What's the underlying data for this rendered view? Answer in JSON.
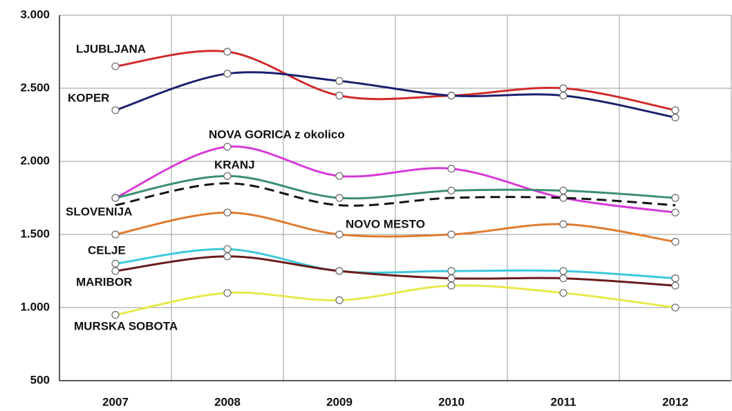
{
  "chart_data": {
    "type": "line",
    "categories": [
      "2007",
      "2008",
      "2009",
      "2010",
      "2011",
      "2012"
    ],
    "ylim": [
      500,
      3000
    ],
    "yticks": [
      500,
      {
        "value": 1000,
        "label": "1.000"
      },
      {
        "value": 1500,
        "label": "1.500"
      },
      {
        "value": 2000,
        "label": "2.000"
      },
      {
        "value": 2500,
        "label": "2.500"
      },
      {
        "value": 3000,
        "label": "3.000"
      }
    ],
    "grid": true,
    "series": [
      {
        "name": "LJUBLJANA",
        "color": "#d02a2a",
        "values": [
          2650,
          2750,
          2450,
          2450,
          2500,
          2350
        ]
      },
      {
        "name": "KOPER",
        "color": "#1a1f6e",
        "values": [
          2350,
          2600,
          2550,
          2450,
          2450,
          2300
        ]
      },
      {
        "name": "NOVA GORICA z okolico",
        "color": "#d838d8",
        "values": [
          1750,
          2100,
          1900,
          1950,
          1750,
          1650
        ]
      },
      {
        "name": "KRANJ",
        "color": "#3a8f70",
        "values": [
          1750,
          1900,
          1750,
          1800,
          1800,
          1750
        ]
      },
      {
        "name": "SLOVENIJA",
        "color": "#111111",
        "dashed": true,
        "markers": false,
        "values": [
          1700,
          1850,
          1700,
          1750,
          1750,
          1700
        ]
      },
      {
        "name": "NOVO MESTO",
        "color": "#e07b30",
        "values": [
          1500,
          1650,
          1500,
          1500,
          1570,
          1450
        ]
      },
      {
        "name": "CELJE",
        "color": "#3cc8dc",
        "values": [
          1300,
          1400,
          1250,
          1250,
          1250,
          1200
        ]
      },
      {
        "name": "MARIBOR",
        "color": "#6a1a1a",
        "values": [
          1250,
          1350,
          1250,
          1200,
          1200,
          1150
        ]
      },
      {
        "name": "MURSKA SOBOTA",
        "color": "#e8e84a",
        "values": [
          950,
          1100,
          1050,
          1150,
          1100,
          1000
        ]
      }
    ]
  }
}
